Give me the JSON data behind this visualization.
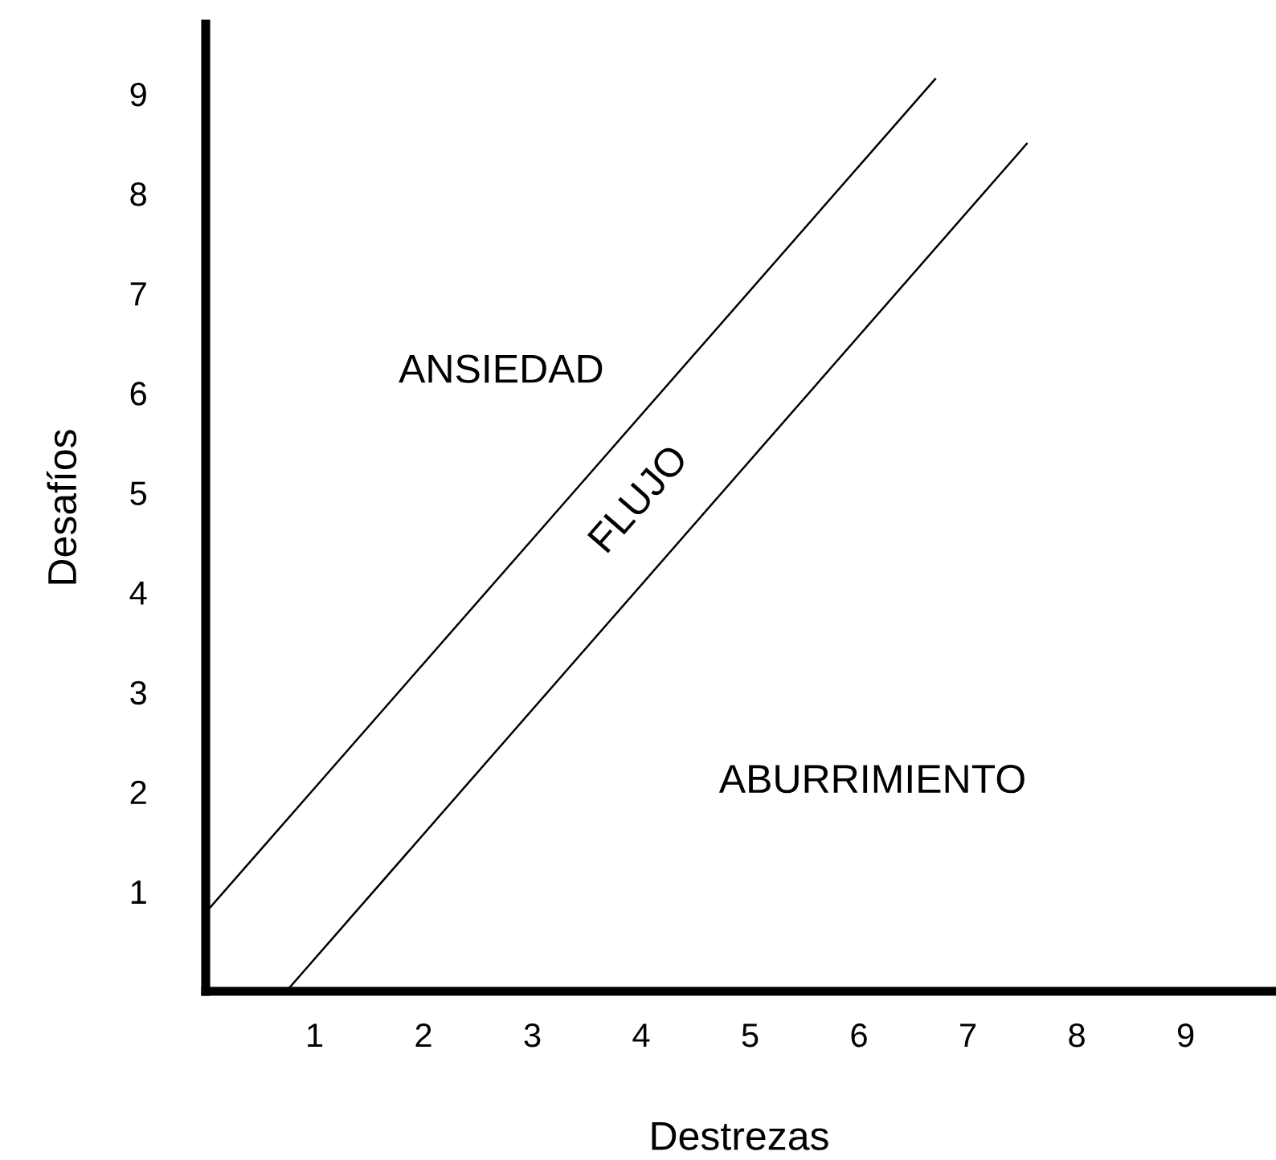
{
  "chart_data": {
    "type": "line",
    "xlabel": "Destrezas",
    "ylabel": "Desafíos",
    "series": [
      {
        "color": "#000000",
        "x": [
          0,
          6.7
        ],
        "values": [
          0.79,
          9.15
        ]
      },
      {
        "color": "#000000",
        "x": [
          0.74,
          7.54
        ],
        "values": [
          0,
          8.5
        ]
      }
    ],
    "xlim": [
      0,
      9.8
    ],
    "ylim": [
      0,
      9.7
    ],
    "xticks": [
      1,
      2,
      3,
      4,
      5,
      6,
      7,
      8,
      9
    ],
    "yticks": [
      1,
      2,
      3,
      4,
      5,
      6,
      7,
      8,
      9
    ],
    "annotations": [
      "ANSIEDAD",
      "FLUJO",
      "ABURRIMIENTO"
    ],
    "grid": false,
    "legend": false,
    "marker": "none",
    "line_style": "solid"
  }
}
